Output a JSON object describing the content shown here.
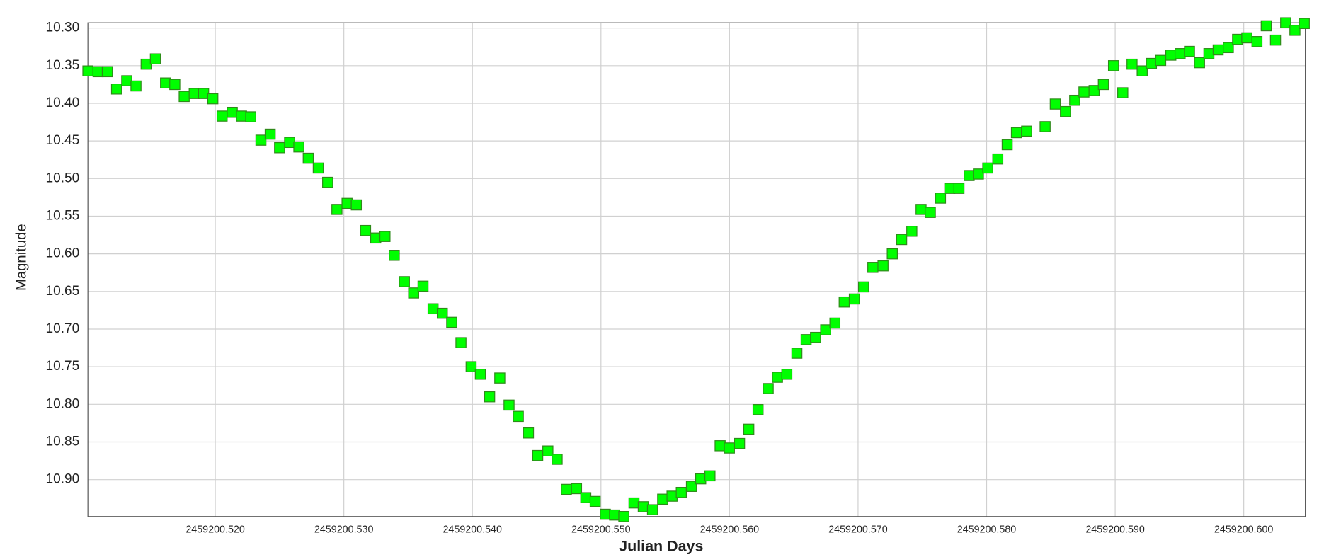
{
  "chart_data": {
    "type": "scatter",
    "x_label": "Julian Days",
    "y_label": "Magnitude",
    "color": "#00ff00",
    "grid": true,
    "y_inverted": true,
    "xlim": [
      2459200.51009,
      2459200.60479
    ],
    "ylim": [
      10.293,
      10.949
    ],
    "xticks": [
      {
        "value": 2459200.52,
        "label": "2459200.520"
      },
      {
        "value": 2459200.53,
        "label": "2459200.530"
      },
      {
        "value": 2459200.54,
        "label": "2459200.540"
      },
      {
        "value": 2459200.55,
        "label": "2459200.550"
      },
      {
        "value": 2459200.56,
        "label": "2459200.560"
      },
      {
        "value": 2459200.57,
        "label": "2459200.570"
      },
      {
        "value": 2459200.58,
        "label": "2459200.580"
      },
      {
        "value": 2459200.59,
        "label": "2459200.590"
      },
      {
        "value": 2459200.6,
        "label": "2459200.600"
      }
    ],
    "yticks": [
      {
        "value": 10.3,
        "label": "10.30"
      },
      {
        "value": 10.35,
        "label": "10.35"
      },
      {
        "value": 10.4,
        "label": "10.40"
      },
      {
        "value": 10.45,
        "label": "10.45"
      },
      {
        "value": 10.5,
        "label": "10.50"
      },
      {
        "value": 10.55,
        "label": "10.55"
      },
      {
        "value": 10.6,
        "label": "10.60"
      },
      {
        "value": 10.65,
        "label": "10.65"
      },
      {
        "value": 10.7,
        "label": "10.70"
      },
      {
        "value": 10.75,
        "label": "10.75"
      },
      {
        "value": 10.8,
        "label": "10.80"
      },
      {
        "value": 10.85,
        "label": "10.85"
      },
      {
        "value": 10.9,
        "label": "10.90"
      }
    ],
    "x": [
      2459200.51009,
      2459200.51088,
      2459200.5116,
      2459200.51232,
      2459200.51311,
      2459200.51383,
      2459200.51462,
      2459200.51534,
      2459200.51613,
      2459200.51685,
      2459200.51758,
      2459200.51836,
      2459200.51909,
      2459200.51981,
      2459200.52053,
      2459200.52132,
      2459200.52204,
      2459200.52276,
      2459200.52355,
      2459200.52427,
      2459200.525,
      2459200.52578,
      2459200.5265,
      2459200.52723,
      2459200.52801,
      2459200.52874,
      2459200.52946,
      2459200.53025,
      2459200.53097,
      2459200.53169,
      2459200.53248,
      2459200.5332,
      2459200.53392,
      2459200.53471,
      2459200.53543,
      2459200.53616,
      2459200.53694,
      2459200.53766,
      2459200.53839,
      2459200.53911,
      2459200.5399,
      2459200.54062,
      2459200.54134,
      2459200.54213,
      2459200.54285,
      2459200.54357,
      2459200.54436,
      2459200.54508,
      2459200.54587,
      2459200.54659,
      2459200.54731,
      2459200.5481,
      2459200.54882,
      2459200.54955,
      2459200.55034,
      2459200.55106,
      2459200.55178,
      2459200.55257,
      2459200.55329,
      2459200.55401,
      2459200.5548,
      2459200.55553,
      2459200.55625,
      2459200.55704,
      2459200.55776,
      2459200.55848,
      2459200.55927,
      2459200.55999,
      2459200.56078,
      2459200.5615,
      2459200.56222,
      2459200.56301,
      2459200.56373,
      2459200.56446,
      2459200.56524,
      2459200.56596,
      2459200.56669,
      2459200.56748,
      2459200.5682,
      2459200.56892,
      2459200.56971,
      2459200.57043,
      2459200.57115,
      2459200.57194,
      2459200.57266,
      2459200.57339,
      2459200.57418,
      2459200.5749,
      2459200.57562,
      2459200.57641,
      2459200.57713,
      2459200.57785,
      2459200.57864,
      2459200.57936,
      2459200.58009,
      2459200.58087,
      2459200.5816,
      2459200.58232,
      2459200.58311,
      2459200.58455,
      2459200.58534,
      2459200.58613,
      2459200.58685,
      2459200.58757,
      2459200.58836,
      2459200.58908,
      2459200.58987,
      2459200.59059,
      2459200.59131,
      2459200.5921,
      2459200.59282,
      2459200.59354,
      2459200.59433,
      2459200.59505,
      2459200.59578,
      2459200.59656,
      2459200.59729,
      2459200.59801,
      2459200.5988,
      2459200.59952,
      2459200.60024,
      2459200.60103,
      2459200.60175,
      2459200.60247,
      2459200.60326,
      2459200.60398,
      2459200.60471
    ],
    "values": [
      10.357,
      10.358,
      10.358,
      10.381,
      10.37,
      10.377,
      10.348,
      10.341,
      10.373,
      10.375,
      10.391,
      10.387,
      10.387,
      10.394,
      10.417,
      10.412,
      10.417,
      10.418,
      10.449,
      10.441,
      10.459,
      10.452,
      10.458,
      10.473,
      10.486,
      10.505,
      10.541,
      10.533,
      10.535,
      10.569,
      10.579,
      10.577,
      10.602,
      10.637,
      10.652,
      10.643,
      10.673,
      10.679,
      10.691,
      10.718,
      10.75,
      10.76,
      10.79,
      10.765,
      10.801,
      10.816,
      10.838,
      10.868,
      10.862,
      10.873,
      10.913,
      10.912,
      10.924,
      10.929,
      10.946,
      10.947,
      10.949,
      10.931,
      10.936,
      10.94,
      10.926,
      10.922,
      10.917,
      10.909,
      10.899,
      10.895,
      10.855,
      10.858,
      10.852,
      10.833,
      10.807,
      10.779,
      10.764,
      10.76,
      10.732,
      10.714,
      10.711,
      10.701,
      10.692,
      10.664,
      10.66,
      10.644,
      10.618,
      10.616,
      10.6,
      10.581,
      10.57,
      10.541,
      10.545,
      10.526,
      10.513,
      10.513,
      10.496,
      10.494,
      10.486,
      10.474,
      10.455,
      10.439,
      10.437,
      10.431,
      10.401,
      10.411,
      10.396,
      10.385,
      10.383,
      10.375,
      10.35,
      10.386,
      10.348,
      10.357,
      10.347,
      10.343,
      10.336,
      10.334,
      10.331,
      10.346,
      10.334,
      10.329,
      10.326,
      10.315,
      10.313,
      10.318,
      10.297,
      10.316,
      10.293,
      10.303,
      10.294
    ]
  }
}
